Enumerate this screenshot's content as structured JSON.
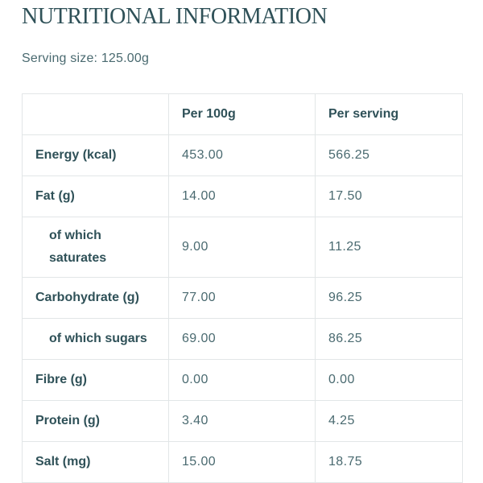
{
  "header": {
    "title": "NUTRITIONAL INFORMATION",
    "serving": "Serving size: 125.00g"
  },
  "table": {
    "columns": [
      "",
      "Per 100g",
      "Per serving"
    ],
    "rows": [
      {
        "label": "Energy (kcal)",
        "per100": "453.00",
        "serving": "566.25"
      },
      {
        "label": "Fat (g)",
        "per100": "14.00",
        "serving": "17.50"
      },
      {
        "label": "of which saturates",
        "per100": "9.00",
        "serving": "11.25"
      },
      {
        "label": "Carbohydrate (g)",
        "per100": "77.00",
        "serving": "96.25"
      },
      {
        "label": "of which sugars",
        "per100": "69.00",
        "serving": "86.25"
      },
      {
        "label": "Fibre (g)",
        "per100": "0.00",
        "serving": "0.00"
      },
      {
        "label": "Protein (g)",
        "per100": "3.40",
        "serving": "4.25"
      },
      {
        "label": "Salt (mg)",
        "per100": "15.00",
        "serving": "18.75"
      }
    ]
  }
}
